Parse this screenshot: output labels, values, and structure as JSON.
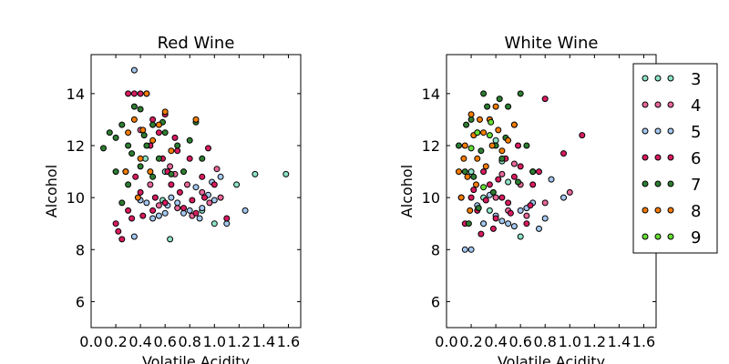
{
  "chart_data": [
    {
      "type": "scatter",
      "title": "Red Wine",
      "xlabel": "Volatile Acidity",
      "ylabel": "Alcohol",
      "xlim": [
        0.0,
        1.7
      ],
      "ylim": [
        5,
        15.5
      ],
      "xticks": [
        "0.0",
        "0.2",
        "0.4",
        "0.6",
        "0.8",
        "1.0",
        "1.2",
        "1.4",
        "1.6"
      ],
      "yticks": [
        "6",
        "8",
        "10",
        "12",
        "14"
      ],
      "grid": false,
      "series": [
        {
          "name": "3",
          "color": "#8ee3c8",
          "points": [
            [
              0.58,
              9.9
            ],
            [
              1.0,
              9.0
            ],
            [
              1.18,
              10.5
            ],
            [
              0.6,
              11.0
            ],
            [
              0.9,
              9.5
            ],
            [
              1.58,
              10.9
            ],
            [
              1.33,
              10.9
            ],
            [
              0.44,
              11.5
            ],
            [
              0.64,
              8.4
            ]
          ]
        },
        {
          "name": "4",
          "color": "#e7679a",
          "points": [
            [
              0.9,
              10.2
            ],
            [
              0.7,
              9.6
            ],
            [
              1.05,
              10.0
            ],
            [
              0.4,
              12.6
            ],
            [
              0.55,
              9.7
            ],
            [
              0.78,
              10.5
            ],
            [
              0.96,
              9.8
            ],
            [
              0.64,
              11.2
            ],
            [
              0.82,
              9.3
            ],
            [
              1.02,
              11.1
            ],
            [
              0.68,
              10.9
            ],
            [
              0.48,
              10.5
            ]
          ]
        },
        {
          "name": "5",
          "color": "#a5c8f0",
          "points": [
            [
              0.35,
              14.9
            ],
            [
              0.6,
              9.4
            ],
            [
              0.7,
              9.8
            ],
            [
              0.8,
              9.5
            ],
            [
              0.9,
              9.6
            ],
            [
              0.95,
              10.1
            ],
            [
              1.0,
              9.9
            ],
            [
              1.1,
              9.0
            ],
            [
              1.25,
              9.5
            ],
            [
              0.5,
              9.2
            ],
            [
              0.55,
              9.3
            ],
            [
              0.65,
              10.0
            ],
            [
              0.75,
              9.4
            ],
            [
              0.85,
              10.4
            ],
            [
              0.4,
              9.9
            ],
            [
              0.45,
              9.8
            ],
            [
              0.35,
              8.5
            ],
            [
              1.05,
              10.8
            ],
            [
              0.88,
              9.2
            ],
            [
              0.62,
              9.7
            ],
            [
              0.98,
              10.6
            ]
          ]
        },
        {
          "name": "6",
          "color": "#d81b60",
          "points": [
            [
              0.3,
              14.0
            ],
            [
              0.35,
              14.0
            ],
            [
              0.4,
              14.0
            ],
            [
              0.45,
              14.0
            ],
            [
              0.5,
              13.0
            ],
            [
              0.6,
              13.2
            ],
            [
              0.55,
              12.5
            ],
            [
              0.7,
              11.8
            ],
            [
              0.8,
              11.5
            ],
            [
              0.9,
              10.8
            ],
            [
              1.0,
              10.5
            ],
            [
              1.1,
              9.2
            ],
            [
              0.2,
              9.0
            ],
            [
              0.25,
              8.4
            ],
            [
              0.3,
              9.5
            ],
            [
              0.4,
              10.2
            ],
            [
              0.5,
              9.5
            ],
            [
              0.6,
              9.8
            ],
            [
              0.65,
              10.5
            ],
            [
              0.75,
              9.6
            ],
            [
              0.85,
              9.4
            ],
            [
              0.95,
              11.9
            ],
            [
              0.22,
              8.7
            ],
            [
              0.33,
              9.2
            ],
            [
              0.42,
              9.3
            ],
            [
              0.52,
              10.0
            ],
            [
              0.62,
              11.0
            ],
            [
              0.72,
              10.2
            ],
            [
              0.82,
              9.9
            ],
            [
              0.92,
              10.0
            ],
            [
              0.48,
              12.0
            ],
            [
              0.58,
              11.5
            ],
            [
              0.36,
              10.8
            ],
            [
              0.28,
              11.0
            ],
            [
              0.68,
              12.3
            ]
          ]
        },
        {
          "name": "7",
          "color": "#2e7d32",
          "points": [
            [
              0.1,
              11.9
            ],
            [
              0.15,
              12.5
            ],
            [
              0.2,
              11.0
            ],
            [
              0.25,
              12.8
            ],
            [
              0.3,
              12.0
            ],
            [
              0.35,
              13.5
            ],
            [
              0.4,
              13.4
            ],
            [
              0.45,
              12.0
            ],
            [
              0.5,
              12.8
            ],
            [
              0.55,
              11.5
            ],
            [
              0.6,
              12.5
            ],
            [
              0.65,
              10.9
            ],
            [
              0.7,
              12.0
            ],
            [
              0.8,
              12.2
            ],
            [
              0.85,
              12.9
            ],
            [
              0.9,
              11.5
            ],
            [
              0.3,
              10.5
            ],
            [
              0.25,
              9.8
            ],
            [
              0.4,
              11.2
            ],
            [
              0.5,
              10.8
            ],
            [
              0.2,
              12.3
            ],
            [
              0.33,
              11.7
            ],
            [
              0.43,
              12.4
            ],
            [
              0.58,
              12.9
            ],
            [
              0.75,
              11.0
            ]
          ]
        },
        {
          "name": "8",
          "color": "#f57c00",
          "points": [
            [
              0.3,
              12.5
            ],
            [
              0.35,
              13.0
            ],
            [
              0.4,
              11.5
            ],
            [
              0.45,
              14.0
            ],
            [
              0.5,
              12.2
            ],
            [
              0.55,
              12.8
            ],
            [
              0.6,
              13.3
            ],
            [
              0.65,
              11.8
            ],
            [
              0.85,
              13.0
            ],
            [
              0.38,
              10.0
            ],
            [
              0.28,
              11.0
            ],
            [
              0.48,
              11.0
            ],
            [
              0.42,
              12.6
            ]
          ]
        }
      ]
    },
    {
      "type": "scatter",
      "title": "White Wine",
      "xlabel": "Volatile Acidity",
      "ylabel": "Alcohol",
      "xlim": [
        0.0,
        1.7
      ],
      "ylim": [
        5,
        15.5
      ],
      "xticks": [
        "0.0",
        "0.2",
        "0.4",
        "0.6",
        "0.8",
        "1.0",
        "1.2",
        "1.4",
        "1.6"
      ],
      "yticks": [
        "6",
        "8",
        "10",
        "12",
        "14"
      ],
      "grid": false,
      "legend": {
        "placement": "right",
        "labels": [
          "3",
          "4",
          "5",
          "6",
          "7",
          "8",
          "9"
        ]
      },
      "series": [
        {
          "name": "3",
          "color": "#8ee3c8",
          "points": [
            [
              0.3,
              10.0
            ],
            [
              0.5,
              10.6
            ],
            [
              0.4,
              12.2
            ],
            [
              0.6,
              8.5
            ],
            [
              0.2,
              11.0
            ],
            [
              0.35,
              9.5
            ],
            [
              0.45,
              11.4
            ]
          ]
        },
        {
          "name": "4",
          "color": "#e7679a",
          "points": [
            [
              0.4,
              10.0
            ],
            [
              0.6,
              10.5
            ],
            [
              0.7,
              11.0
            ],
            [
              0.8,
              9.8
            ],
            [
              0.5,
              9.5
            ],
            [
              1.0,
              10.2
            ],
            [
              0.55,
              11.3
            ],
            [
              0.3,
              9.0
            ],
            [
              0.65,
              9.3
            ],
            [
              0.45,
              10.9
            ]
          ]
        },
        {
          "name": "5",
          "color": "#a5c8f0",
          "points": [
            [
              0.15,
              8.0
            ],
            [
              0.2,
              8.0
            ],
            [
              0.3,
              9.0
            ],
            [
              0.4,
              9.3
            ],
            [
              0.5,
              9.0
            ],
            [
              0.6,
              9.5
            ],
            [
              0.7,
              9.8
            ],
            [
              0.8,
              9.2
            ],
            [
              0.85,
              10.7
            ],
            [
              0.95,
              10.0
            ],
            [
              0.25,
              9.7
            ],
            [
              0.35,
              10.1
            ],
            [
              0.55,
              8.9
            ],
            [
              0.65,
              9.6
            ],
            [
              0.45,
              9.1
            ],
            [
              0.75,
              8.8
            ]
          ]
        },
        {
          "name": "6",
          "color": "#d81b60",
          "points": [
            [
              0.15,
              9.0
            ],
            [
              0.2,
              10.0
            ],
            [
              0.25,
              9.5
            ],
            [
              0.3,
              11.0
            ],
            [
              0.35,
              10.5
            ],
            [
              0.4,
              9.2
            ],
            [
              0.45,
              10.0
            ],
            [
              0.5,
              9.8
            ],
            [
              0.55,
              10.8
            ],
            [
              0.6,
              11.2
            ],
            [
              0.65,
              9.0
            ],
            [
              0.7,
              10.5
            ],
            [
              0.75,
              11.0
            ],
            [
              0.8,
              13.8
            ],
            [
              1.1,
              12.4
            ],
            [
              0.95,
              11.7
            ],
            [
              0.28,
              8.6
            ],
            [
              0.38,
              8.8
            ],
            [
              0.48,
              11.5
            ],
            [
              0.58,
              12.0
            ],
            [
              0.68,
              9.7
            ],
            [
              0.22,
              10.3
            ],
            [
              0.32,
              9.9
            ],
            [
              0.42,
              10.7
            ],
            [
              0.52,
              9.4
            ]
          ]
        },
        {
          "name": "7",
          "color": "#2e7d32",
          "points": [
            [
              0.1,
              12.0
            ],
            [
              0.15,
              11.0
            ],
            [
              0.2,
              13.0
            ],
            [
              0.25,
              12.5
            ],
            [
              0.3,
              14.0
            ],
            [
              0.35,
              13.0
            ],
            [
              0.4,
              12.0
            ],
            [
              0.45,
              11.5
            ],
            [
              0.5,
              13.5
            ],
            [
              0.55,
              12.8
            ],
            [
              0.6,
              14.0
            ],
            [
              0.65,
              12.0
            ],
            [
              0.7,
              11.0
            ],
            [
              0.12,
              10.0
            ],
            [
              0.18,
              9.0
            ],
            [
              0.22,
              10.8
            ],
            [
              0.28,
              11.8
            ],
            [
              0.38,
              10.2
            ],
            [
              0.48,
              12.3
            ],
            [
              0.58,
              10.6
            ],
            [
              0.33,
              13.5
            ],
            [
              0.43,
              13.8
            ],
            [
              0.16,
              12.8
            ],
            [
              0.26,
              9.6
            ]
          ]
        },
        {
          "name": "8",
          "color": "#f57c00",
          "points": [
            [
              0.1,
              11.0
            ],
            [
              0.15,
              12.0
            ],
            [
              0.2,
              13.2
            ],
            [
              0.25,
              11.5
            ],
            [
              0.3,
              12.5
            ],
            [
              0.35,
              13.0
            ],
            [
              0.4,
              13.5
            ],
            [
              0.45,
              11.8
            ],
            [
              0.5,
              12.2
            ],
            [
              0.55,
              12.8
            ],
            [
              0.12,
              10.0
            ],
            [
              0.17,
              10.8
            ],
            [
              0.22,
              12.4
            ],
            [
              0.27,
              13.0
            ],
            [
              0.32,
              11.2
            ],
            [
              0.37,
              12.0
            ],
            [
              0.42,
              12.6
            ],
            [
              0.14,
              11.5
            ],
            [
              0.19,
              9.5
            ],
            [
              0.24,
              10.5
            ]
          ]
        },
        {
          "name": "9",
          "color": "#66dd33",
          "points": [
            [
              0.25,
              12.5
            ],
            [
              0.35,
              12.4
            ],
            [
              0.3,
              10.4
            ],
            [
              0.2,
              11.9
            ],
            [
              0.36,
              12.9
            ]
          ]
        }
      ]
    }
  ]
}
